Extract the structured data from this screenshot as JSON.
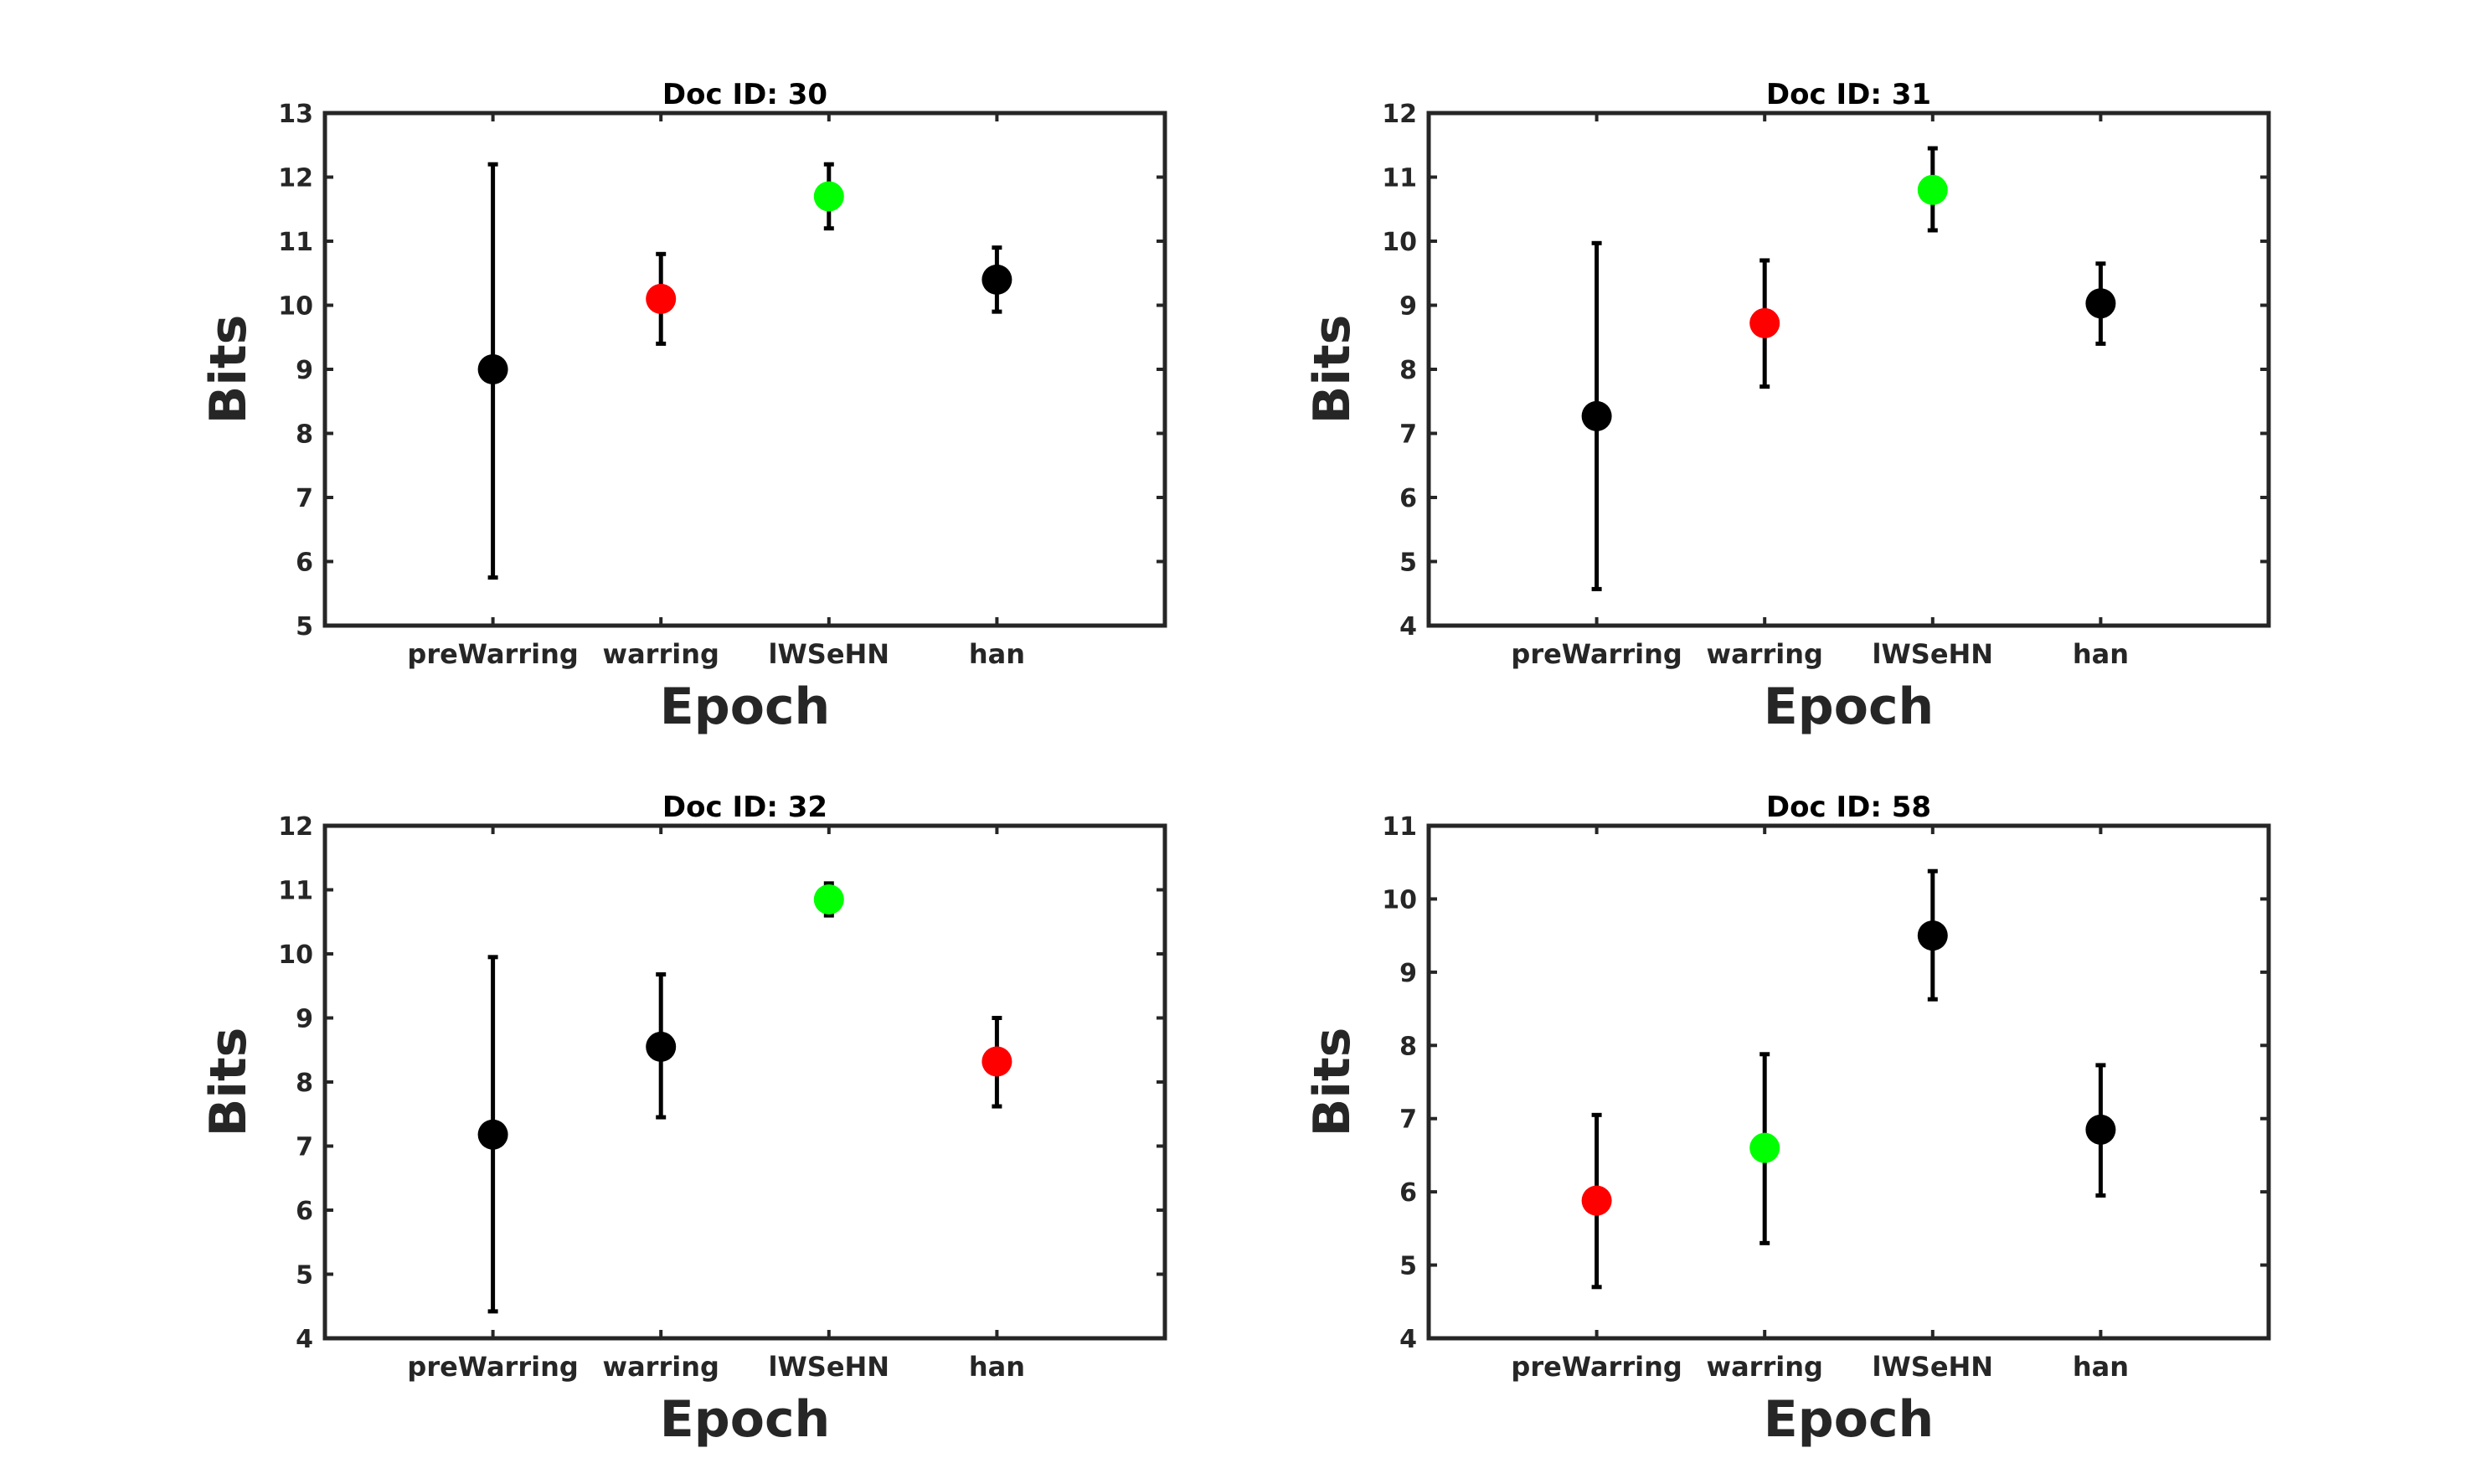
{
  "chart_data": [
    {
      "type": "scatter",
      "title": "Doc ID: 30",
      "xlabel": "Epoch",
      "ylabel": "Bits",
      "categories": [
        "preWarring",
        "warring",
        "lWSeHN",
        "han"
      ],
      "ylim": [
        5,
        13
      ],
      "yticks": [
        5,
        6,
        7,
        8,
        9,
        10,
        11,
        12,
        13
      ],
      "xrange": [
        0,
        5
      ],
      "grid": false,
      "points": [
        {
          "category": "preWarring",
          "value": 9.0,
          "lower": 5.75,
          "upper": 12.2,
          "color": "#000000"
        },
        {
          "category": "warring",
          "value": 10.1,
          "lower": 9.4,
          "upper": 10.8,
          "color": "#ff0000"
        },
        {
          "category": "lWSeHN",
          "value": 11.7,
          "lower": 11.2,
          "upper": 12.2,
          "color": "#00ff00"
        },
        {
          "category": "han",
          "value": 10.4,
          "lower": 9.9,
          "upper": 10.9,
          "color": "#000000"
        }
      ]
    },
    {
      "type": "scatter",
      "title": "Doc ID: 31",
      "xlabel": "Epoch",
      "ylabel": "Bits",
      "categories": [
        "preWarring",
        "warring",
        "lWSeHN",
        "han"
      ],
      "ylim": [
        4,
        12
      ],
      "yticks": [
        4,
        5,
        6,
        7,
        8,
        9,
        10,
        11,
        12
      ],
      "xrange": [
        0,
        5
      ],
      "grid": false,
      "points": [
        {
          "category": "preWarring",
          "value": 7.27,
          "lower": 4.57,
          "upper": 9.97,
          "color": "#000000"
        },
        {
          "category": "warring",
          "value": 8.72,
          "lower": 7.73,
          "upper": 9.7,
          "color": "#ff0000"
        },
        {
          "category": "lWSeHN",
          "value": 10.8,
          "lower": 10.17,
          "upper": 11.45,
          "color": "#00ff00"
        },
        {
          "category": "han",
          "value": 9.03,
          "lower": 8.4,
          "upper": 9.65,
          "color": "#000000"
        }
      ]
    },
    {
      "type": "scatter",
      "title": "Doc ID: 32",
      "xlabel": "Epoch",
      "ylabel": "Bits",
      "categories": [
        "preWarring",
        "warring",
        "lWSeHN",
        "han"
      ],
      "ylim": [
        4,
        12
      ],
      "yticks": [
        4,
        5,
        6,
        7,
        8,
        9,
        10,
        11,
        12
      ],
      "xrange": [
        0,
        5
      ],
      "grid": false,
      "points": [
        {
          "category": "preWarring",
          "value": 7.18,
          "lower": 4.42,
          "upper": 9.95,
          "color": "#000000"
        },
        {
          "category": "warring",
          "value": 8.55,
          "lower": 7.45,
          "upper": 9.68,
          "color": "#000000"
        },
        {
          "category": "lWSeHN",
          "value": 10.85,
          "lower": 10.6,
          "upper": 11.1,
          "color": "#00ff00"
        },
        {
          "category": "han",
          "value": 8.32,
          "lower": 7.62,
          "upper": 9.0,
          "color": "#ff0000"
        }
      ]
    },
    {
      "type": "scatter",
      "title": "Doc ID: 58",
      "xlabel": "Epoch",
      "ylabel": "Bits",
      "categories": [
        "preWarring",
        "warring",
        "lWSeHN",
        "han"
      ],
      "ylim": [
        4,
        11
      ],
      "yticks": [
        4,
        5,
        6,
        7,
        8,
        9,
        10,
        11
      ],
      "xrange": [
        0,
        5
      ],
      "grid": false,
      "points": [
        {
          "category": "preWarring",
          "value": 5.88,
          "lower": 4.7,
          "upper": 7.05,
          "color": "#ff0000"
        },
        {
          "category": "warring",
          "value": 6.6,
          "lower": 5.3,
          "upper": 7.88,
          "color": "#00ff00"
        },
        {
          "category": "lWSeHN",
          "value": 9.5,
          "lower": 8.63,
          "upper": 10.38,
          "color": "#000000"
        },
        {
          "category": "han",
          "value": 6.85,
          "lower": 5.95,
          "upper": 7.73,
          "color": "#000000"
        }
      ]
    }
  ]
}
